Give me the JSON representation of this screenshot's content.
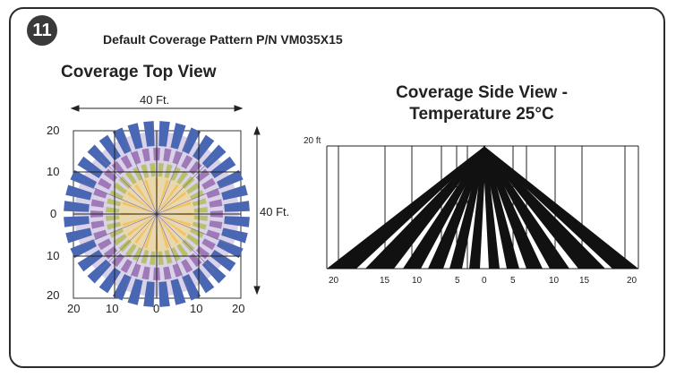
{
  "badge": "11",
  "header_title": "Default Coverage Pattern  P/N VM035X15",
  "top_view": {
    "title": "Coverage Top View",
    "width_label": "40 Ft.",
    "height_label": "40 Ft.",
    "y_labels": [
      "20",
      "10",
      "0",
      "10",
      "20"
    ],
    "x_labels": [
      "20",
      "10",
      "0",
      "10",
      "20"
    ]
  },
  "side_view": {
    "title_line1": "Coverage Side View -",
    "title_line2": "Temperature 25°C",
    "height_label": "20 ft",
    "x_labels": [
      "20",
      "15",
      "10",
      "5",
      "0",
      "5",
      "10",
      "15",
      "20"
    ]
  },
  "colors": {
    "outer_zone": "#4a67b3",
    "mid_zone": "#a07ab8",
    "inner_zone": "#b9bf6a",
    "core_zone": "#f2c45a",
    "background_disc": "#cfc7e4",
    "beam": "#111111"
  }
}
